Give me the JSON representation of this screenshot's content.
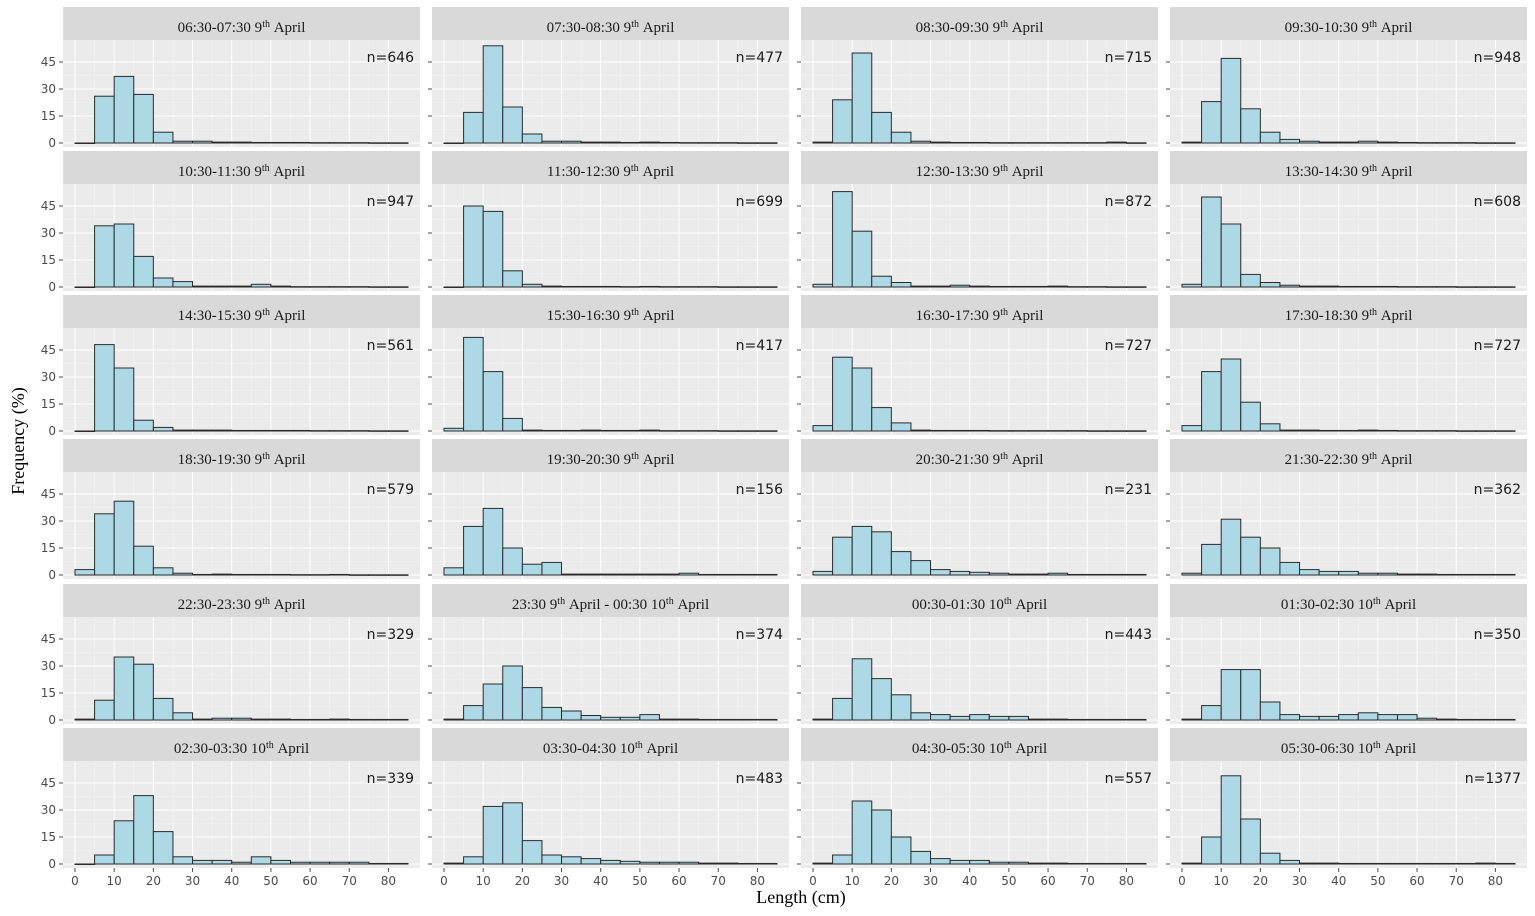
{
  "chart_data": {
    "type": "bar",
    "subtype": "faceted-histogram",
    "xlabel": "Length (cm)",
    "ylabel": "Frequency (%)",
    "xlim": [
      0,
      85
    ],
    "ylim": [
      0,
      55
    ],
    "x_ticks": [
      0,
      10,
      20,
      30,
      40,
      50,
      60,
      70,
      80
    ],
    "y_ticks": [
      0,
      15,
      30,
      45
    ],
    "bin_width": 5,
    "bin_starts": [
      0,
      5,
      10,
      15,
      20,
      25,
      30,
      35,
      40,
      45,
      50,
      55,
      60,
      65,
      70,
      75,
      80
    ],
    "bar_fill": "#add8e6",
    "bar_outline": "#2b2b2b",
    "panel_background": "#ebebeb",
    "strip_background": "#d9d9d9",
    "panels": [
      {
        "time": "06:30-07:30",
        "day": "9",
        "ord": "th",
        "month": "April",
        "n_label": "n=646",
        "values": [
          0,
          26,
          37,
          27,
          6,
          1,
          1,
          0.5,
          0.5,
          0.3,
          0.3,
          0.3,
          0.2,
          0.2,
          0.2,
          0.1,
          0.1
        ]
      },
      {
        "time": "07:30-08:30",
        "day": "9",
        "ord": "th",
        "month": "April",
        "n_label": "n=477",
        "values": [
          0,
          17,
          54,
          20,
          5,
          1,
          1,
          0.5,
          0.5,
          0.3,
          0.5,
          0.3,
          0.2,
          0.2,
          0.2,
          0.1,
          0.1
        ]
      },
      {
        "time": "08:30-09:30",
        "day": "9",
        "ord": "th",
        "month": "April",
        "n_label": "n=715",
        "values": [
          0.5,
          24,
          50,
          17,
          6,
          1,
          0.5,
          0.3,
          0.3,
          0.2,
          0.2,
          0.2,
          0.2,
          0.2,
          0.2,
          0.5,
          0.1
        ]
      },
      {
        "time": "09:30-10:30",
        "day": "9",
        "ord": "th",
        "month": "April",
        "n_label": "n=948",
        "values": [
          0.5,
          23,
          47,
          19,
          6,
          2,
          1,
          0.5,
          0.5,
          1,
          0.5,
          0.3,
          0.2,
          0.2,
          0.2,
          0.1,
          0.1
        ]
      },
      {
        "time": "10:30-11:30",
        "day": "9",
        "ord": "th",
        "month": "April",
        "n_label": "n=947",
        "values": [
          0,
          34,
          35,
          17,
          5,
          3,
          0.5,
          0.5,
          0.5,
          1.5,
          0.5,
          0.2,
          0.2,
          0.2,
          0.2,
          0.1,
          0.1
        ]
      },
      {
        "time": "11:30-12:30",
        "day": "9",
        "ord": "th",
        "month": "April",
        "n_label": "n=699",
        "values": [
          0,
          45,
          42,
          9,
          1.5,
          0.5,
          0.3,
          0.3,
          0.3,
          0.2,
          0.3,
          0.2,
          0.2,
          0.2,
          0.1,
          0.1,
          0.1
        ]
      },
      {
        "time": "12:30-13:30",
        "day": "9",
        "ord": "th",
        "month": "April",
        "n_label": "n=872",
        "values": [
          1.5,
          53,
          31,
          6,
          2.5,
          0.5,
          0.5,
          1,
          0.5,
          0.3,
          0.3,
          0.3,
          0.5,
          0.2,
          0.2,
          0.1,
          0.1
        ]
      },
      {
        "time": "13:30-14:30",
        "day": "9",
        "ord": "th",
        "month": "April",
        "n_label": "n=608",
        "values": [
          1.5,
          50,
          35,
          7,
          2.5,
          1,
          0.5,
          0.5,
          0.3,
          0.3,
          0.3,
          0.2,
          0.2,
          0.2,
          0.1,
          0.1,
          0.1
        ]
      },
      {
        "time": "14:30-15:30",
        "day": "9",
        "ord": "th",
        "month": "April",
        "n_label": "n=561",
        "values": [
          0,
          48,
          35,
          6,
          2,
          0.5,
          0.5,
          0.5,
          0.3,
          0.3,
          0.3,
          0.3,
          0.2,
          0.2,
          0.2,
          0.1,
          0.1
        ]
      },
      {
        "time": "15:30-16:30",
        "day": "9",
        "ord": "th",
        "month": "April",
        "n_label": "n=417",
        "values": [
          1.5,
          52,
          33,
          7,
          0.5,
          0.3,
          0.3,
          0.5,
          0.3,
          0.3,
          0.5,
          0.2,
          0.2,
          0.2,
          0.1,
          0.1,
          0.1
        ]
      },
      {
        "time": "16:30-17:30",
        "day": "9",
        "ord": "th",
        "month": "April",
        "n_label": "n=727",
        "values": [
          3,
          41,
          35,
          13,
          4.5,
          0.5,
          0.3,
          0.3,
          0.3,
          0.2,
          0.2,
          0.2,
          0.2,
          0.2,
          0.1,
          0.1,
          0.1
        ]
      },
      {
        "time": "17:30-18:30",
        "day": "9",
        "ord": "th",
        "month": "April",
        "n_label": "n=727",
        "values": [
          3,
          33,
          40,
          16,
          4,
          0.5,
          0.5,
          0.3,
          0.3,
          0.5,
          0.3,
          0.2,
          0.2,
          0.2,
          0.1,
          0.1,
          0.1
        ]
      },
      {
        "time": "18:30-19:30",
        "day": "9",
        "ord": "th",
        "month": "April",
        "n_label": "n=579",
        "values": [
          3,
          34,
          41,
          16,
          4,
          1,
          0.3,
          0.5,
          0.3,
          0.3,
          0.3,
          0.2,
          0.2,
          0.3,
          0.1,
          0.1,
          0.1
        ]
      },
      {
        "time": "19:30-20:30",
        "day": "9",
        "ord": "th",
        "month": "April",
        "n_label": "n=156",
        "values": [
          4,
          27,
          37,
          15,
          6,
          7,
          0.5,
          0.5,
          0.5,
          0.5,
          0.5,
          0.5,
          1,
          0.3,
          0.3,
          0.3,
          0.3
        ]
      },
      {
        "time": "20:30-21:30",
        "day": "9",
        "ord": "th",
        "month": "April",
        "n_label": "n=231",
        "values": [
          2,
          21,
          27,
          24,
          13,
          8,
          3,
          2,
          1.5,
          1,
          0.5,
          0.5,
          1,
          0.3,
          0.3,
          0.3,
          0.3
        ]
      },
      {
        "time": "21:30-22:30",
        "day": "9",
        "ord": "th",
        "month": "April",
        "n_label": "n=362",
        "values": [
          1,
          17,
          31,
          21,
          15,
          7,
          3,
          2,
          2,
          1,
          1,
          0.5,
          0.5,
          0.3,
          0.3,
          0.3,
          0.3
        ]
      },
      {
        "time": "22:30-23:30",
        "day": "9",
        "ord": "th",
        "month": "April",
        "n_label": "n=329",
        "values": [
          0.5,
          11,
          35,
          31,
          12,
          4,
          0.5,
          1,
          1,
          0.5,
          0.5,
          0.3,
          0.3,
          0.5,
          0.3,
          0.3,
          0.3
        ]
      },
      {
        "time": "23:30",
        "day": "9",
        "ord": "th",
        "month": "April",
        "time2": "00:30",
        "day2": "10",
        "ord2": "th",
        "month2": "April",
        "n_label": "n=374",
        "values": [
          0.5,
          8,
          20,
          30,
          18,
          7,
          5,
          2.5,
          1.5,
          1.5,
          3,
          0.5,
          0.5,
          0.3,
          0.3,
          0.3,
          0.3
        ]
      },
      {
        "time": "00:30-01:30",
        "day": "10",
        "ord": "th",
        "month": "April",
        "n_label": "n=443",
        "values": [
          0.5,
          12,
          34,
          23,
          14,
          4,
          3,
          2,
          3,
          2,
          2,
          0.5,
          0.5,
          0.3,
          0.3,
          0.3,
          0.3
        ]
      },
      {
        "time": "01:30-02:30",
        "day": "10",
        "ord": "th",
        "month": "April",
        "n_label": "n=350",
        "values": [
          0.5,
          8,
          28,
          28,
          10,
          3,
          2,
          2,
          3,
          4,
          3,
          3,
          1,
          0.5,
          0.3,
          0.3,
          0.3
        ]
      },
      {
        "time": "02:30-03:30",
        "day": "10",
        "ord": "th",
        "month": "April",
        "n_label": "n=339",
        "values": [
          0,
          5,
          24,
          38,
          18,
          4,
          2,
          2,
          1,
          4,
          2,
          1,
          1,
          1,
          1,
          0.3,
          0.3
        ]
      },
      {
        "time": "03:30-04:30",
        "day": "10",
        "ord": "th",
        "month": "April",
        "n_label": "n=483",
        "values": [
          0.5,
          4,
          32,
          34,
          13,
          5,
          4,
          3,
          2,
          1.5,
          1,
          1,
          1,
          0.5,
          0.5,
          0.3,
          0.3
        ]
      },
      {
        "time": "04:30-05:30",
        "day": "10",
        "ord": "th",
        "month": "April",
        "n_label": "n=557",
        "values": [
          0.5,
          5,
          35,
          30,
          15,
          7,
          3,
          2,
          2,
          1,
          1,
          0.5,
          0.5,
          0.3,
          0.3,
          0.3,
          0.3
        ]
      },
      {
        "time": "05:30-06:30",
        "day": "10",
        "ord": "th",
        "month": "April",
        "n_label": "n=1377",
        "values": [
          0.5,
          15,
          49,
          25,
          6,
          2,
          0.5,
          0.5,
          0.3,
          0.3,
          0.3,
          0.3,
          0.3,
          0.3,
          0.3,
          0.5,
          0.3
        ]
      }
    ]
  }
}
